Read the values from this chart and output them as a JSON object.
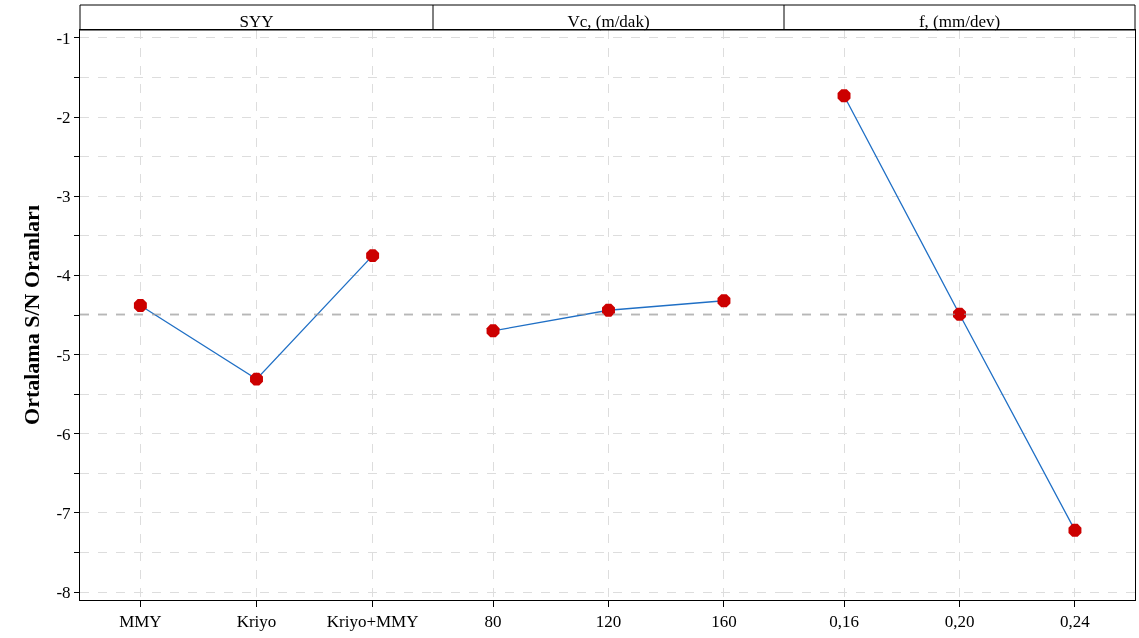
{
  "chart_data": [
    {
      "type": "line",
      "title": "SYY",
      "ylabel": "Ortalama S/N Oranları",
      "categories": [
        "MMY",
        "Kriyo",
        "Kriyo+MMY"
      ],
      "series": [
        {
          "color": "#1f6fc5",
          "colors": [
            "#cc0000",
            "#cc0000",
            "#cc0000"
          ],
          "values": [
            -4.38,
            -5.31,
            -3.75
          ]
        }
      ],
      "ylim": [
        -8.1,
        -0.9
      ],
      "yticks": [
        -8,
        {
          "value": -7.5,
          "label": null
        },
        -7,
        {
          "value": -6.5,
          "label": null
        },
        -6,
        {
          "value": -5.5,
          "label": null
        },
        -5,
        {
          "value": -4.5,
          "label": null
        },
        -4,
        {
          "value": -3.5,
          "label": null
        },
        -3,
        {
          "value": -2.5,
          "label": null
        },
        -2,
        {
          "value": -1.5,
          "label": null
        },
        -1
      ],
      "ref_lines": [
        {
          "axis": "y",
          "value": -4.49,
          "color": "#999999",
          "line_style": "dashed"
        }
      ],
      "grid": true,
      "marker": "circle",
      "line_style": "solid"
    },
    {
      "type": "line",
      "title": "Vc, (m/dak)",
      "categories": [
        "80",
        "120",
        "160"
      ],
      "series": [
        {
          "color": "#1f6fc5",
          "colors": [
            "#cc0000",
            "#cc0000",
            "#cc0000"
          ],
          "values": [
            -4.7,
            -4.44,
            -4.32
          ]
        }
      ],
      "ylim": [
        -8.1,
        -0.9
      ],
      "yticks": [
        -8,
        {
          "value": -7.5,
          "label": null
        },
        -7,
        {
          "value": -6.5,
          "label": null
        },
        -6,
        {
          "value": -5.5,
          "label": null
        },
        -5,
        {
          "value": -4.5,
          "label": null
        },
        -4,
        {
          "value": -3.5,
          "label": null
        },
        -3,
        {
          "value": -2.5,
          "label": null
        },
        -2,
        {
          "value": -1.5,
          "label": null
        },
        -1
      ],
      "ref_lines": [
        {
          "axis": "y",
          "value": -4.49,
          "color": "#999999",
          "line_style": "dashed"
        }
      ],
      "grid": true,
      "marker": "circle",
      "line_style": "solid",
      "tick_labels": "x"
    },
    {
      "type": "line",
      "title": "f, (mm/dev)",
      "categories": [
        "0,16",
        "0,20",
        "0,24"
      ],
      "series": [
        {
          "color": "#1f6fc5",
          "colors": [
            "#cc0000",
            "#cc0000",
            "#cc0000"
          ],
          "values": [
            -1.73,
            -4.49,
            -7.22
          ]
        }
      ],
      "ylim": [
        -8.1,
        -0.9
      ],
      "yticks": [
        -8,
        {
          "value": -7.5,
          "label": null
        },
        -7,
        {
          "value": -6.5,
          "label": null
        },
        -6,
        {
          "value": -5.5,
          "label": null
        },
        -5,
        {
          "value": -4.5,
          "label": null
        },
        -4,
        {
          "value": -3.5,
          "label": null
        },
        -3,
        {
          "value": -2.5,
          "label": null
        },
        -2,
        {
          "value": -1.5,
          "label": null
        },
        -1
      ],
      "ref_lines": [
        {
          "axis": "y",
          "value": -4.49,
          "color": "#999999",
          "line_style": "dashed"
        }
      ],
      "grid": true,
      "marker": "circle",
      "line_style": "solid",
      "tick_labels": "x"
    }
  ]
}
